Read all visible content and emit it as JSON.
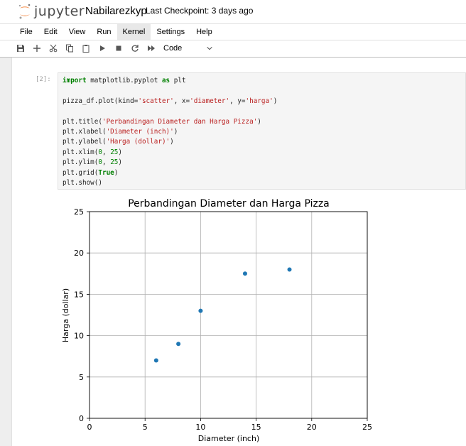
{
  "header": {
    "logo_text": "jupyter",
    "notebook_title": "Nabilarezkyp",
    "checkpoint": "Last Checkpoint: 3 days ago"
  },
  "menu": [
    "File",
    "Edit",
    "View",
    "Run",
    "Kernel",
    "Settings",
    "Help"
  ],
  "toolbar": {
    "cell_type": "Code"
  },
  "cell": {
    "prompt": "[2]:",
    "code_lines": [
      "import matplotlib.pyplot as plt",
      "",
      "pizza_df.plot(kind='scatter', x='diameter', y='harga')",
      "",
      "plt.title('Perbandingan Diameter dan Harga Pizza')",
      "plt.xlabel('Diameter (inch)')",
      "plt.ylabel('Harga (dollar)')",
      "plt.xlim(0, 25)",
      "plt.ylim(0, 25)",
      "plt.grid(True)",
      "plt.show()"
    ]
  },
  "chart_data": {
    "type": "scatter",
    "title": "Perbandingan Diameter dan Harga Pizza",
    "xlabel": "Diameter (inch)",
    "ylabel": "Harga (dollar)",
    "xlim": [
      0,
      25
    ],
    "ylim": [
      0,
      25
    ],
    "xticks": [
      0,
      5,
      10,
      15,
      20,
      25
    ],
    "yticks": [
      0,
      5,
      10,
      15,
      20,
      25
    ],
    "grid": true,
    "color": "#1f77b4",
    "x": [
      6,
      8,
      10,
      14,
      18
    ],
    "y": [
      7,
      9,
      13,
      17.5,
      18
    ]
  }
}
